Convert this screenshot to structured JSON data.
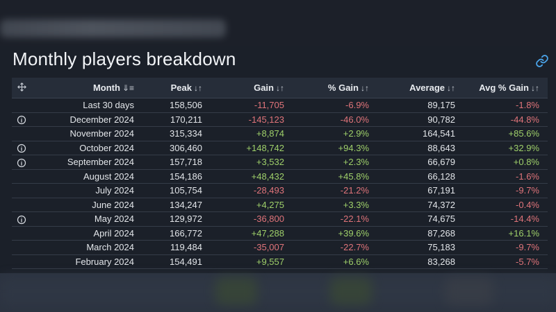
{
  "page": {
    "heading": "Monthly players breakdown"
  },
  "icons": {
    "link": "link-icon",
    "expand": "expand-arrows-icon",
    "info": "info-circle-icon"
  },
  "colors": {
    "positive": "#9fd06a",
    "negative": "#e0747a",
    "header_bg": "#262d39",
    "background": "#1b2029"
  },
  "table": {
    "columns": [
      {
        "label": "Month",
        "sort_glyph": "⇓≡"
      },
      {
        "label": "Peak",
        "sort_glyph": "↓↑"
      },
      {
        "label": "Gain",
        "sort_glyph": "↓↑"
      },
      {
        "label": "% Gain",
        "sort_glyph": "↓↑"
      },
      {
        "label": "Average",
        "sort_glyph": "↓↑"
      },
      {
        "label": "Avg % Gain",
        "sort_glyph": "↓↑"
      }
    ],
    "rows": [
      {
        "info": false,
        "month": "Last 30 days",
        "peak": "158,506",
        "gain": "-11,705",
        "gain_pct": "-6.9%",
        "average": "89,175",
        "avg_gain_pct": "-1.8%"
      },
      {
        "info": true,
        "month": "December 2024",
        "peak": "170,211",
        "gain": "-145,123",
        "gain_pct": "-46.0%",
        "average": "90,782",
        "avg_gain_pct": "-44.8%"
      },
      {
        "info": false,
        "month": "November 2024",
        "peak": "315,334",
        "gain": "+8,874",
        "gain_pct": "+2.9%",
        "average": "164,541",
        "avg_gain_pct": "+85.6%"
      },
      {
        "info": true,
        "month": "October 2024",
        "peak": "306,460",
        "gain": "+148,742",
        "gain_pct": "+94.3%",
        "average": "88,643",
        "avg_gain_pct": "+32.9%"
      },
      {
        "info": true,
        "month": "September 2024",
        "peak": "157,718",
        "gain": "+3,532",
        "gain_pct": "+2.3%",
        "average": "66,679",
        "avg_gain_pct": "+0.8%"
      },
      {
        "info": false,
        "month": "August 2024",
        "peak": "154,186",
        "gain": "+48,432",
        "gain_pct": "+45.8%",
        "average": "66,128",
        "avg_gain_pct": "-1.6%"
      },
      {
        "info": false,
        "month": "July 2024",
        "peak": "105,754",
        "gain": "-28,493",
        "gain_pct": "-21.2%",
        "average": "67,191",
        "avg_gain_pct": "-9.7%"
      },
      {
        "info": false,
        "month": "June 2024",
        "peak": "134,247",
        "gain": "+4,275",
        "gain_pct": "+3.3%",
        "average": "74,372",
        "avg_gain_pct": "-0.4%"
      },
      {
        "info": true,
        "month": "May 2024",
        "peak": "129,972",
        "gain": "-36,800",
        "gain_pct": "-22.1%",
        "average": "74,675",
        "avg_gain_pct": "-14.4%"
      },
      {
        "info": false,
        "month": "April 2024",
        "peak": "166,772",
        "gain": "+47,288",
        "gain_pct": "+39.6%",
        "average": "87,268",
        "avg_gain_pct": "+16.1%"
      },
      {
        "info": false,
        "month": "March 2024",
        "peak": "119,484",
        "gain": "-35,007",
        "gain_pct": "-22.7%",
        "average": "75,183",
        "avg_gain_pct": "-9.7%"
      },
      {
        "info": false,
        "month": "February 2024",
        "peak": "154,491",
        "gain": "+9,557",
        "gain_pct": "+6.6%",
        "average": "83,268",
        "avg_gain_pct": "-5.7%"
      }
    ]
  }
}
